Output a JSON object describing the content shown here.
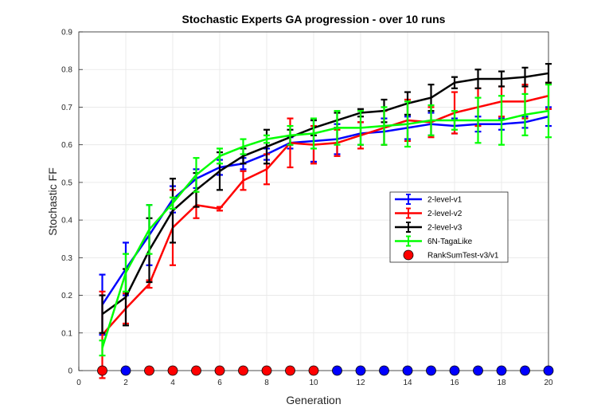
{
  "chart_data": {
    "type": "line",
    "title": "Stochastic Experts GA progression - over 10 runs",
    "xlabel": "Generation",
    "ylabel": "Stochastic FF",
    "xlim": [
      0,
      20
    ],
    "ylim": [
      0,
      0.9
    ],
    "xticks": [
      0,
      2,
      4,
      6,
      8,
      10,
      12,
      14,
      16,
      18,
      20
    ],
    "yticks": [
      0,
      0.1,
      0.2,
      0.3,
      0.4,
      0.5,
      0.6,
      0.7,
      0.8,
      0.9
    ],
    "grid": true,
    "legend_position": "right-center",
    "x": [
      1,
      2,
      3,
      4,
      5,
      6,
      7,
      8,
      9,
      10,
      11,
      12,
      13,
      14,
      15,
      16,
      17,
      18,
      19,
      20
    ],
    "series": [
      {
        "name": "2-level-v1",
        "color": "#0000ff",
        "values": [
          0.175,
          0.27,
          0.36,
          0.455,
          0.51,
          0.54,
          0.55,
          0.575,
          0.605,
          0.61,
          0.615,
          0.63,
          0.635,
          0.645,
          0.655,
          0.65,
          0.655,
          0.655,
          0.66,
          0.675
        ],
        "errors": [
          0.08,
          0.07,
          0.08,
          0.035,
          0.025,
          0.02,
          0.015,
          0.015,
          0.015,
          0.055,
          0.04,
          0.03,
          0.035,
          0.03,
          0.03,
          0.02,
          0.02,
          0.015,
          0.015,
          0.025
        ]
      },
      {
        "name": "2-level-v2",
        "color": "#ff0000",
        "values": [
          0.095,
          0.165,
          0.23,
          0.38,
          0.44,
          0.43,
          0.505,
          0.535,
          0.605,
          0.6,
          0.605,
          0.625,
          0.645,
          0.665,
          0.66,
          0.685,
          0.7,
          0.715,
          0.715,
          0.73
        ],
        "errors": [
          0.115,
          0.04,
          0.01,
          0.1,
          0.035,
          0.005,
          0.025,
          0.04,
          0.065,
          0.05,
          0.035,
          0.035,
          0.045,
          0.055,
          0.04,
          0.055,
          0.05,
          0.04,
          0.045,
          0.035
        ]
      },
      {
        "name": "2-level-v3",
        "color": "#000000",
        "values": [
          0.15,
          0.195,
          0.32,
          0.425,
          0.48,
          0.53,
          0.57,
          0.595,
          0.62,
          0.645,
          0.665,
          0.685,
          0.69,
          0.71,
          0.725,
          0.765,
          0.775,
          0.775,
          0.78,
          0.79
        ],
        "errors": [
          0.05,
          0.075,
          0.085,
          0.085,
          0.045,
          0.05,
          0.02,
          0.045,
          0.02,
          0.02,
          0.02,
          0.01,
          0.03,
          0.03,
          0.035,
          0.015,
          0.025,
          0.02,
          0.025,
          0.025
        ]
      },
      {
        "name": "6N-TagaLike",
        "color": "#00ff00",
        "values": [
          0.06,
          0.26,
          0.375,
          0.445,
          0.52,
          0.57,
          0.595,
          0.615,
          0.625,
          0.63,
          0.645,
          0.645,
          0.65,
          0.655,
          0.665,
          0.665,
          0.665,
          0.665,
          0.68,
          0.69
        ],
        "errors": [
          0.02,
          0.05,
          0.065,
          0.015,
          0.045,
          0.02,
          0.02,
          0.01,
          0.025,
          0.04,
          0.045,
          0.045,
          0.05,
          0.06,
          0.04,
          0.025,
          0.06,
          0.065,
          0.055,
          0.07
        ]
      }
    ],
    "rank_sum_test": {
      "name": "RankSumTest-v3/v1",
      "y": 0,
      "colors": [
        "#ff0000",
        "#0000ff",
        "#ff0000",
        "#ff0000",
        "#ff0000",
        "#ff0000",
        "#ff0000",
        "#ff0000",
        "#ff0000",
        "#ff0000",
        "#0000ff",
        "#0000ff",
        "#0000ff",
        "#0000ff",
        "#0000ff",
        "#0000ff",
        "#0000ff",
        "#0000ff",
        "#0000ff",
        "#0000ff"
      ]
    }
  }
}
